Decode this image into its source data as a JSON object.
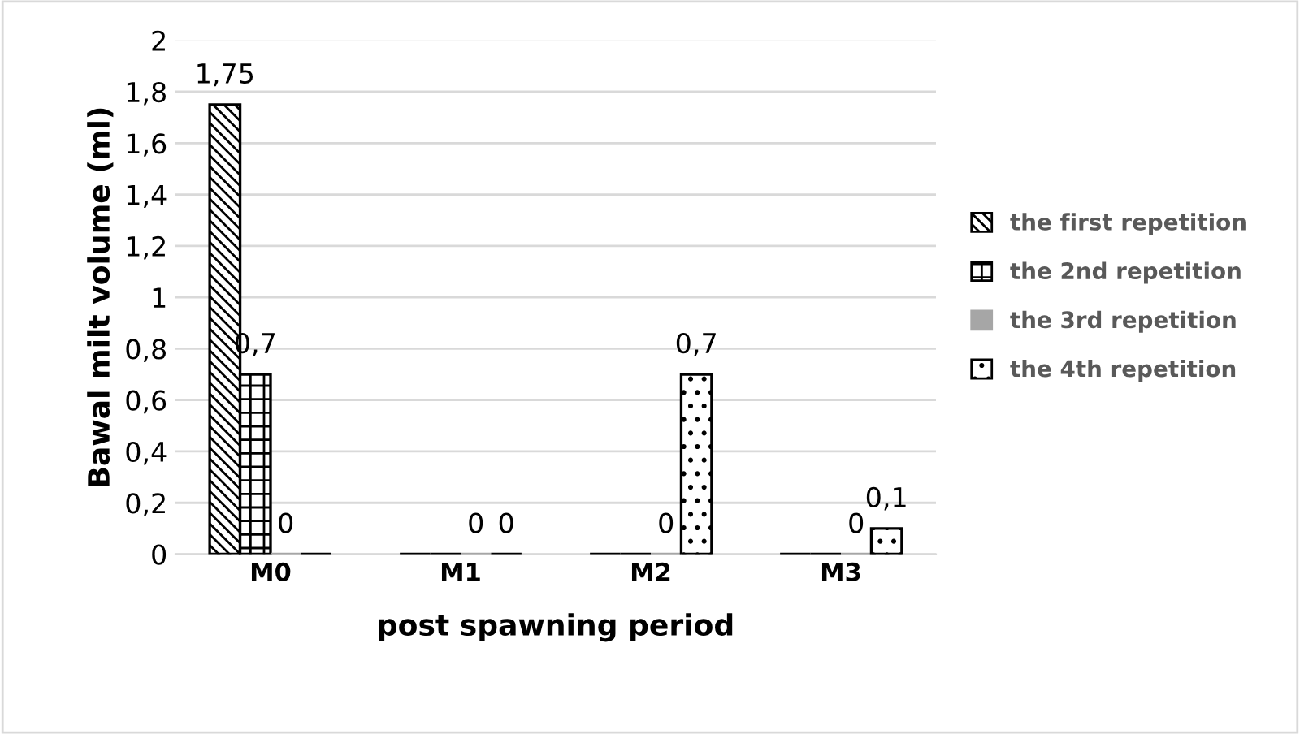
{
  "chart_data": {
    "type": "bar",
    "xlabel": "post spawning period",
    "ylabel": "Bawal milt volume (ml)",
    "categories": [
      "M0",
      "M1",
      "M2",
      "M3"
    ],
    "series": [
      {
        "name": "the first repetition",
        "color": "#000000",
        "values": [
          1.75,
          0,
          0,
          0
        ],
        "value_labels": [
          "1,75",
          null,
          null,
          null
        ]
      },
      {
        "name": "the 2nd repetition",
        "color": "#000000",
        "values": [
          0.7,
          0,
          0,
          0
        ],
        "value_labels": [
          "0,7",
          null,
          null,
          null
        ]
      },
      {
        "name": "the 3rd repetition",
        "color": "#a6a6a6",
        "values": [
          0,
          0,
          0,
          0
        ],
        "value_labels": [
          "0",
          "0",
          "0",
          "0"
        ]
      },
      {
        "name": "the 4th repetition",
        "color": "#000000",
        "values": [
          0,
          0,
          0.7,
          0.1
        ],
        "value_labels": [
          null,
          "0",
          "0,7",
          "0,1"
        ]
      }
    ],
    "ylim": [
      0,
      2
    ],
    "yticks": [
      0,
      {
        "value": 0.2,
        "label": "0,2"
      },
      {
        "value": 0.4,
        "label": "0,4"
      },
      {
        "value": 0.6,
        "label": "0,6"
      },
      {
        "value": 0.8,
        "label": "0,8"
      },
      1,
      {
        "value": 1.2,
        "label": "1,2"
      },
      {
        "value": 1.4,
        "label": "1,4"
      },
      {
        "value": 1.6,
        "label": "1,6"
      },
      {
        "value": 1.8,
        "label": "1,8"
      },
      2
    ],
    "grid": "y",
    "legend": "right"
  }
}
